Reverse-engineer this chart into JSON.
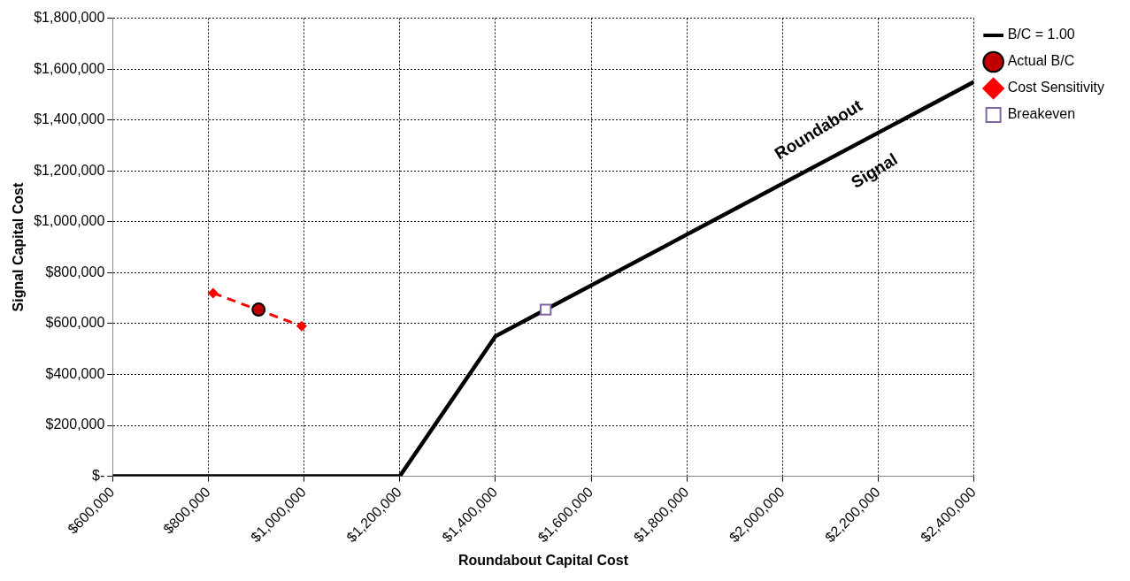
{
  "chart_data": {
    "type": "line",
    "xlabel": "Roundabout Capital Cost",
    "ylabel": "Signal Capital Cost",
    "xlim": [
      600000,
      2400000
    ],
    "ylim": [
      0,
      1800000
    ],
    "xticks": [
      {
        "value": 600000,
        "label": "$600,000"
      },
      {
        "value": 800000,
        "label": "$800,000"
      },
      {
        "value": 1000000,
        "label": "$1,000,000"
      },
      {
        "value": 1200000,
        "label": "$1,200,000"
      },
      {
        "value": 1400000,
        "label": "$1,400,000"
      },
      {
        "value": 1600000,
        "label": "$1,600,000"
      },
      {
        "value": 1800000,
        "label": "$1,800,000"
      },
      {
        "value": 2000000,
        "label": "$2,000,000"
      },
      {
        "value": 2200000,
        "label": "$2,200,000"
      },
      {
        "value": 2400000,
        "label": "$2,400,000"
      }
    ],
    "yticks": [
      {
        "value": 0,
        "label": "$-"
      },
      {
        "value": 200000,
        "label": "$200,000"
      },
      {
        "value": 400000,
        "label": "$400,000"
      },
      {
        "value": 600000,
        "label": "$600,000"
      },
      {
        "value": 800000,
        "label": "$800,000"
      },
      {
        "value": 1000000,
        "label": "$1,000,000"
      },
      {
        "value": 1200000,
        "label": "$1,200,000"
      },
      {
        "value": 1400000,
        "label": "$1,400,000"
      },
      {
        "value": 1600000,
        "label": "$1,600,000"
      },
      {
        "value": 1800000,
        "label": "$1,800,000"
      }
    ],
    "grid": true,
    "legend": "top right",
    "series": [
      {
        "name": "B/C = 1.00",
        "color": "#000000",
        "marker": "none",
        "line_style": "solid",
        "x": [
          600000,
          1200000,
          1400000,
          2400000
        ],
        "values": [
          0,
          0,
          550000,
          1550000
        ]
      },
      {
        "name": "Actual B/C",
        "type": "scatter",
        "color": "#c00000",
        "marker": "circle",
        "x": [
          905000
        ],
        "values": [
          655000
        ]
      },
      {
        "name": "Cost Sensitivity",
        "type": "line",
        "color": "#ff0000",
        "marker": "diamond",
        "line_style": "dashed",
        "x": [
          810000,
          995000
        ],
        "values": [
          720000,
          590000
        ]
      },
      {
        "name": "Breakeven",
        "type": "scatter",
        "color": "#8064a2",
        "marker": "square",
        "x": [
          1505000
        ],
        "values": [
          655000
        ]
      }
    ],
    "annotations": [
      "Roundabout",
      "Signal"
    ]
  }
}
